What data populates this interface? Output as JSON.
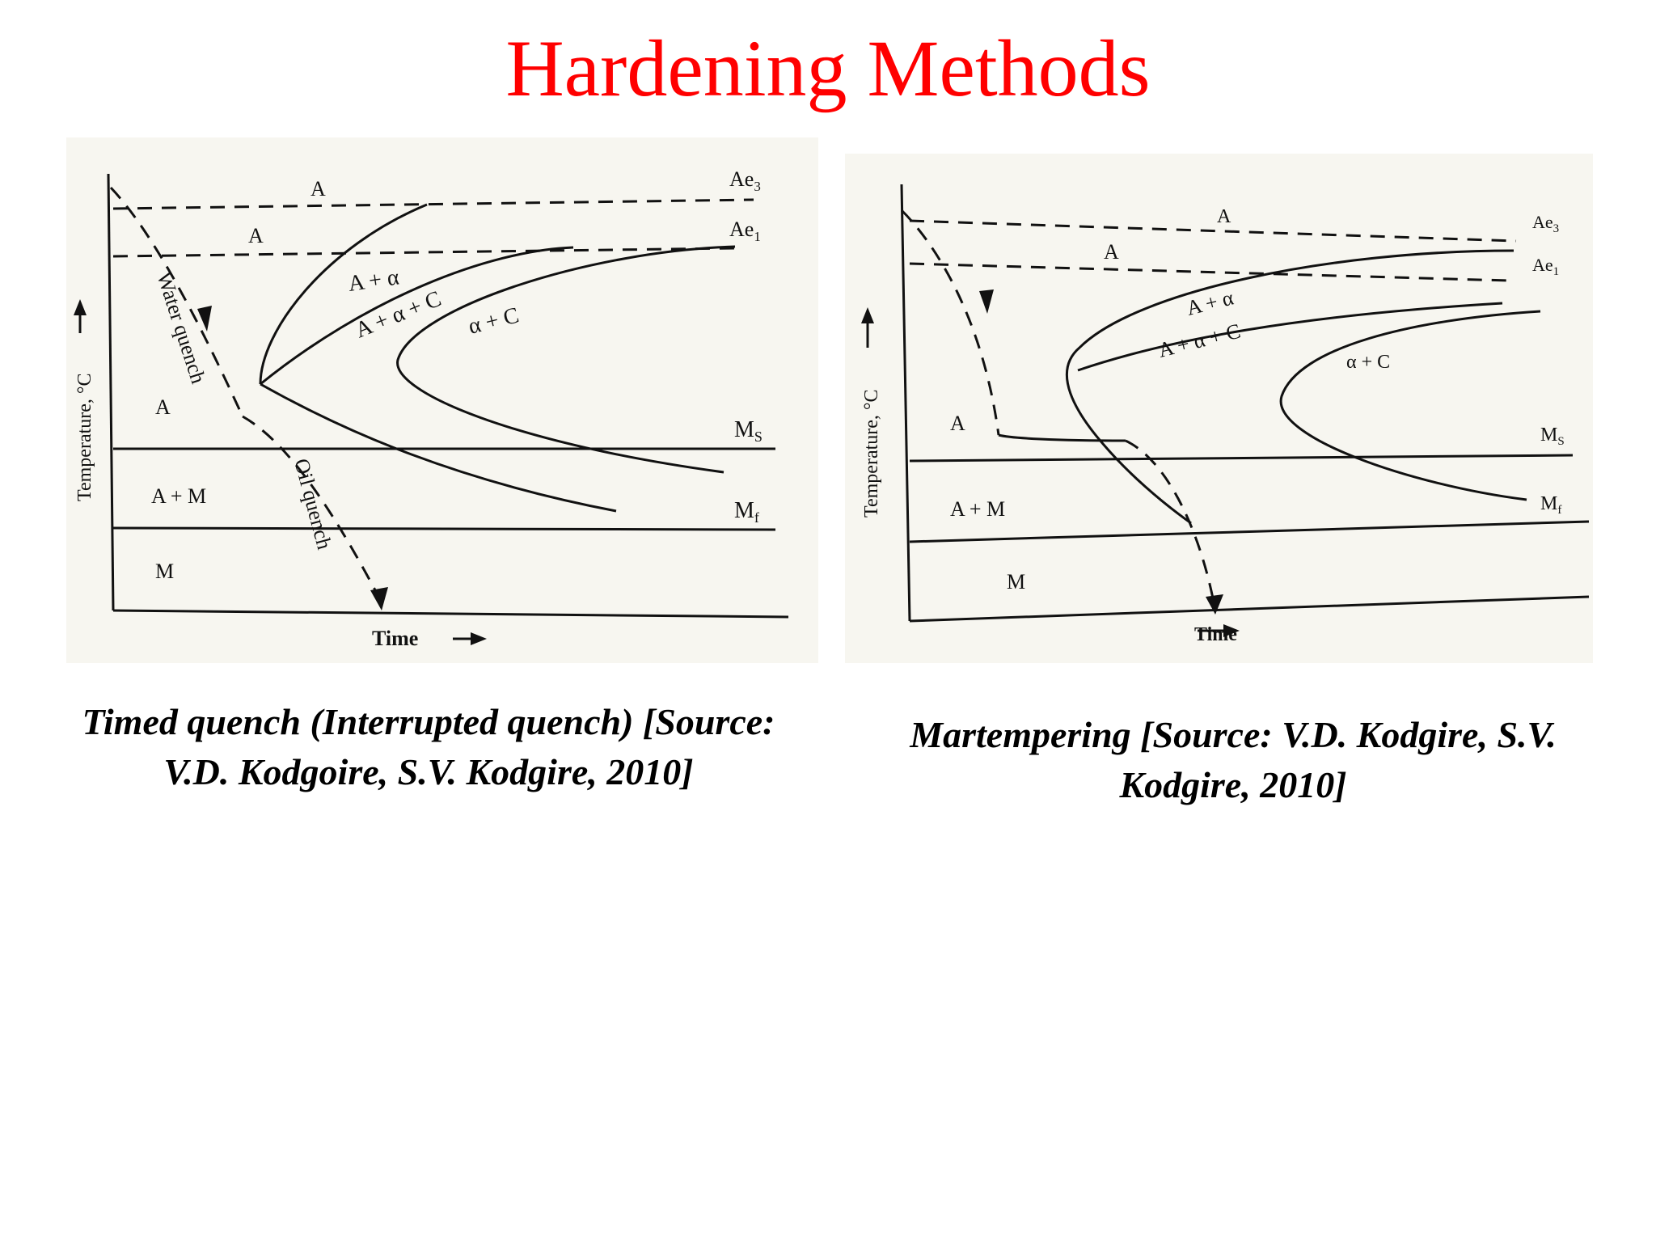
{
  "title": "Hardening Methods",
  "left_figure": {
    "labels": {
      "a_top": "A",
      "a_upper": "A",
      "ae3": "Ae",
      "ae3_sub": "3",
      "ae1": "Ae",
      "ae1_sub": "1",
      "a_alpha": "A + α",
      "a_alpha_c": "A + α + C",
      "alpha_c": "α + C",
      "water_quench": "Water quench",
      "oil_quench": "Oil quench",
      "a_region": "A",
      "ms": "M",
      "ms_sub": "S",
      "a_m": "A + M",
      "mf": "M",
      "mf_sub": "f",
      "m_region": "M",
      "y_axis": "Temperature, °C",
      "x_axis": "Time"
    }
  },
  "right_figure": {
    "labels": {
      "a_top": "A",
      "a_upper": "A",
      "ae3": "Ae",
      "ae3_sub": "3",
      "ae1": "Ae",
      "ae1_sub": "1",
      "a_alpha": "A + α",
      "a_alpha_c": "A + α + C",
      "alpha_c": "α + C",
      "a_region": "A",
      "ms": "M",
      "ms_sub": "S",
      "a_m": "A + M",
      "mf": "M",
      "mf_sub": "f",
      "m_region": "M",
      "y_axis": "Temperature, °C",
      "x_axis": "Time"
    }
  },
  "captions": {
    "left": "Timed quench (Interrupted quench) [Source: V.D. Kodgoire, S.V. Kodgire, 2010]",
    "right": "Martempering [Source: V.D. Kodgire, S.V. Kodgire, 2010]"
  }
}
